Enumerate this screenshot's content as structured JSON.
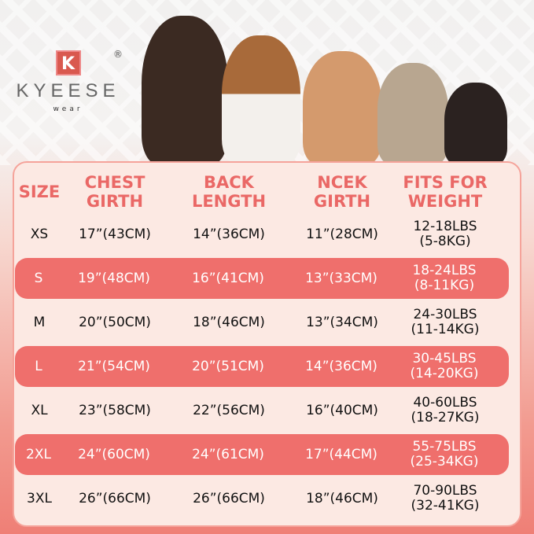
{
  "brand": {
    "mark": "K",
    "registered": "®",
    "name": "KYEESE",
    "tagline": "wear"
  },
  "colors": {
    "accent": "#ef6f6c",
    "header_text": "#ea6866",
    "card": "#fce9e3"
  },
  "table": {
    "headers": [
      "SIZE",
      "CHEST GIRTH",
      "BACK LENGTH",
      "NCEK GIRTH",
      "FITS FOR WEIGHT"
    ],
    "header_lines": [
      [
        "SIZE"
      ],
      [
        "CHEST",
        "GIRTH"
      ],
      [
        "BACK",
        "LENGTH"
      ],
      [
        "NCEK",
        "GIRTH"
      ],
      [
        "FITS FOR",
        "WEIGHT"
      ]
    ],
    "rows": [
      {
        "size": "XS",
        "chest": "17”(43CM)",
        "back": "14”(36CM)",
        "neck": "11”(28CM)",
        "lbs": "12-18LBS",
        "kg": "(5-8KG)",
        "highlight": false
      },
      {
        "size": "S",
        "chest": "19”(48CM)",
        "back": "16”(41CM)",
        "neck": "13”(33CM)",
        "lbs": "18-24LBS",
        "kg": "(8-11KG)",
        "highlight": true
      },
      {
        "size": "M",
        "chest": "20”(50CM)",
        "back": "18”(46CM)",
        "neck": "13”(34CM)",
        "lbs": "24-30LBS",
        "kg": "(11-14KG)",
        "highlight": false
      },
      {
        "size": "L",
        "chest": "21”(54CM)",
        "back": "20”(51CM)",
        "neck": "14”(36CM)",
        "lbs": "30-45LBS",
        "kg": "(14-20KG)",
        "highlight": true
      },
      {
        "size": "XL",
        "chest": "23”(58CM)",
        "back": "22”(56CM)",
        "neck": "16”(40CM)",
        "lbs": "40-60LBS",
        "kg": "(18-27KG)",
        "highlight": false
      },
      {
        "size": "2XL",
        "chest": "24”(60CM)",
        "back": "24”(61CM)",
        "neck": "17”(44CM)",
        "lbs": "55-75LBS",
        "kg": "(25-34KG)",
        "highlight": true
      },
      {
        "size": "3XL",
        "chest": "26”(66CM)",
        "back": "26”(66CM)",
        "neck": "18”(46CM)",
        "lbs": "70-90LBS",
        "kg": "(32-41KG)",
        "highlight": false
      }
    ]
  }
}
